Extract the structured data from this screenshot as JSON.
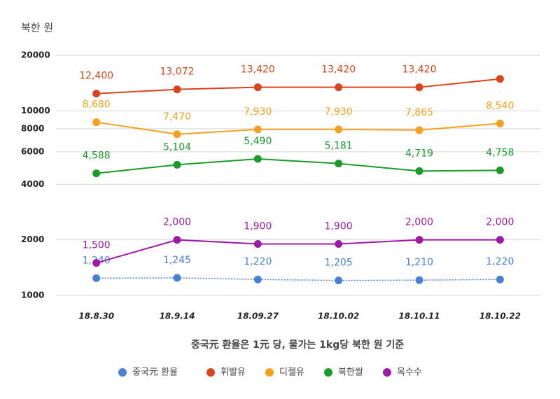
{
  "chart_data": {
    "type": "line",
    "y_label": "북한 원",
    "x_label": "중국元 환율은 1元 당, 물가는 1kg당 북한 원 기준",
    "categories": [
      "18.8.30",
      "18.9.14",
      "18.09.27",
      "18.10.02",
      "18.10.11",
      "18.10.22"
    ],
    "log_scale": true,
    "grid": true,
    "legend": "bottom",
    "ylim": [
      1000,
      20000
    ],
    "yticks": [
      1000,
      2000,
      4000,
      6000,
      8000,
      10000,
      20000
    ],
    "series": [
      {
        "name": "중국元 환율",
        "color": "#4a7fd4",
        "dashed": true,
        "values": [
          1240,
          1245,
          1220,
          1205,
          1210,
          1220
        ],
        "value_labels": [
          "1,240",
          "1,245",
          "1,220",
          "1,205",
          "1,210",
          "1,220"
        ]
      },
      {
        "name": "휘발유",
        "color": "#d9441c",
        "values": [
          12400,
          13072,
          13420,
          13420,
          13420,
          14900
        ],
        "value_labels": [
          "12,400",
          "13,072",
          "13,420",
          "13,420",
          "13,420",
          null
        ]
      },
      {
        "name": "디젤유",
        "color": "#f5a11e",
        "values": [
          8680,
          7470,
          7930,
          7930,
          7865,
          8540
        ],
        "value_labels": [
          "8,680",
          "7,470",
          "7,930",
          "7,930",
          "7,865",
          "8,540"
        ]
      },
      {
        "name": "북한쌀",
        "color": "#1a9a2a",
        "values": [
          4588,
          5104,
          5490,
          5181,
          4719,
          4758
        ],
        "value_labels": [
          "4,588",
          "5,104",
          "5,490",
          "5,181",
          "4,719",
          "4,758"
        ]
      },
      {
        "name": "옥수수",
        "color": "#9c1aa6",
        "values": [
          1500,
          2000,
          1900,
          1900,
          2000,
          2000
        ],
        "value_labels": [
          "1,500",
          "2,000",
          "1,900",
          "1,900",
          "2,000",
          "2,000"
        ]
      }
    ]
  }
}
